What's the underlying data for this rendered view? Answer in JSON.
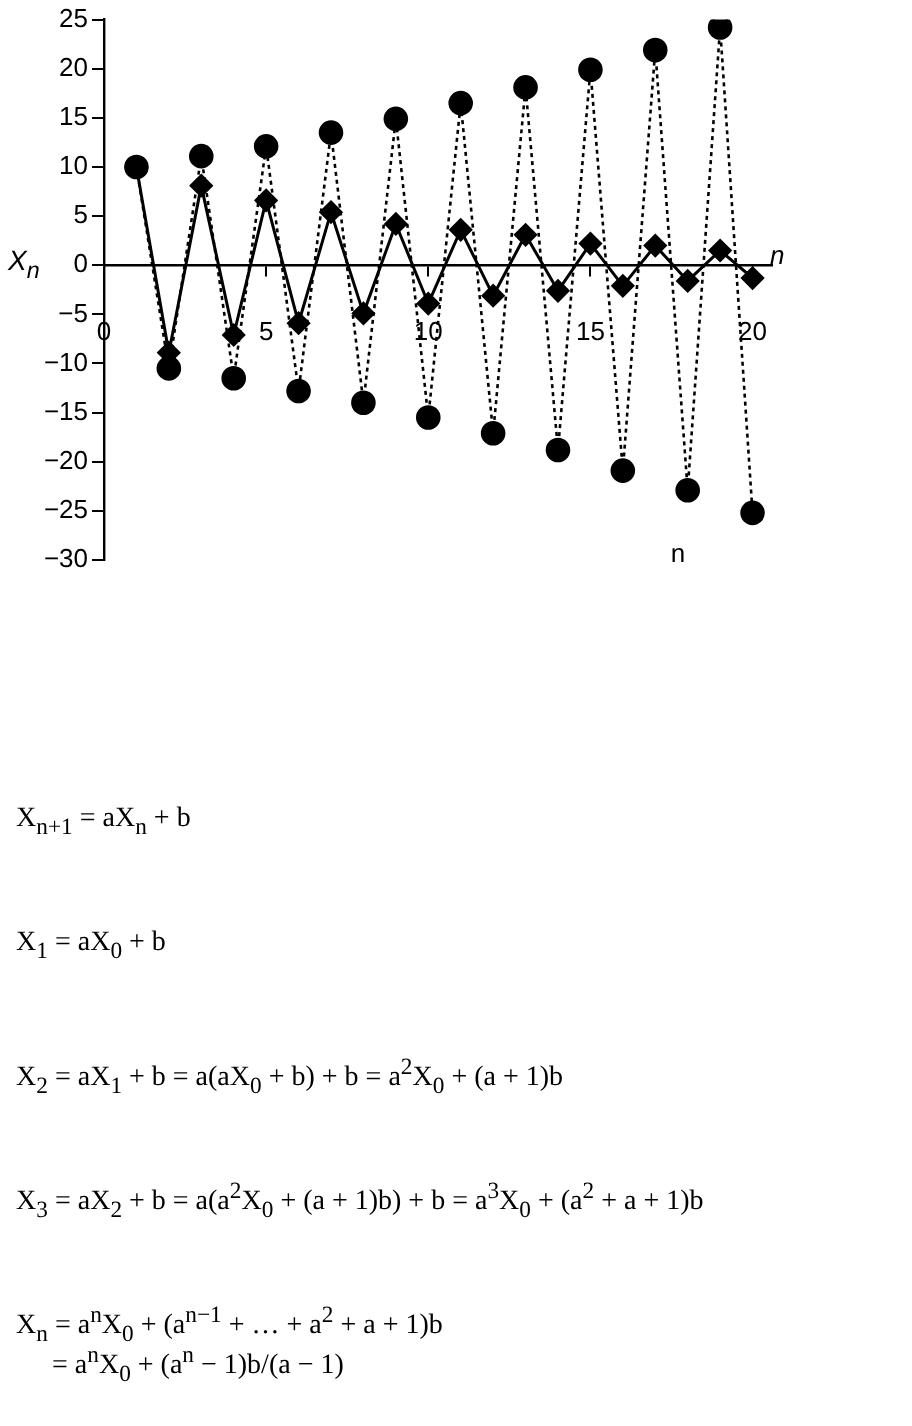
{
  "chart_data": {
    "type": "line",
    "xlabel": "n",
    "ylabel": "X$_{n}$",
    "x": [
      1,
      2,
      3,
      4,
      5,
      6,
      7,
      8,
      9,
      10,
      11,
      12,
      13,
      14,
      15,
      16,
      17,
      18,
      19,
      20
    ],
    "series": [
      {
        "color": "#000000",
        "line_style": "dotted",
        "marker": "circle",
        "values": [
          10,
          -10.5,
          11.1,
          -11.5,
          12.1,
          -12.8,
          13.5,
          -14,
          14.9,
          -15.5,
          16.5,
          -17.1,
          18.1,
          -18.8,
          19.9,
          -20.9,
          21.9,
          -22.9,
          24.2,
          -25.2
        ]
      },
      {
        "color": "#000000",
        "line_style": "solid",
        "marker": "diamond",
        "values": [
          10,
          -8.9,
          8.1,
          -7.1,
          6.6,
          -5.9,
          5.4,
          -4.9,
          4.2,
          -3.9,
          3.6,
          -3.1,
          3.1,
          -2.6,
          2.2,
          -2.1,
          2,
          -1.6,
          1.5,
          -1.3
        ]
      }
    ],
    "xlim": [
      0,
      20.6
    ],
    "xticks": [
      0,
      5,
      10,
      15,
      20
    ],
    "ylim": [
      -30,
      25
    ],
    "yticks": [
      -30,
      -25,
      -20,
      -15,
      -10,
      -5,
      0,
      5,
      10,
      15,
      20,
      25
    ],
    "grid": false,
    "legend": false,
    "annotations": [
      "n",
      "X$_{n+1}$ = aX$_{n}$ + b",
      "X$_{1}$ = aX$_{0}$ + b",
      "X$_{2}$ = aX$_{1}$ + b = a(aX$_{0}$ + b) + b = a$^{2}$X$_{0}$ + (a + 1)b",
      "X$_{3}$ = aX$_{2}$ + b = a(a$^{2}$X$_{0}$ + (a + 1)b) + b = a$^{3}$X$_{0}$ + (a$^{2}$ + a + 1)b",
      "X$_{n}$ = a$^{n}$X$_{0}$ + (a$^{n−1}$ + … + a$^{2}$ + a + 1)b",
      "= a$^{n}$X$_{0}$ + (a$^{n}$ − 1)b/(a − 1)"
    ]
  }
}
